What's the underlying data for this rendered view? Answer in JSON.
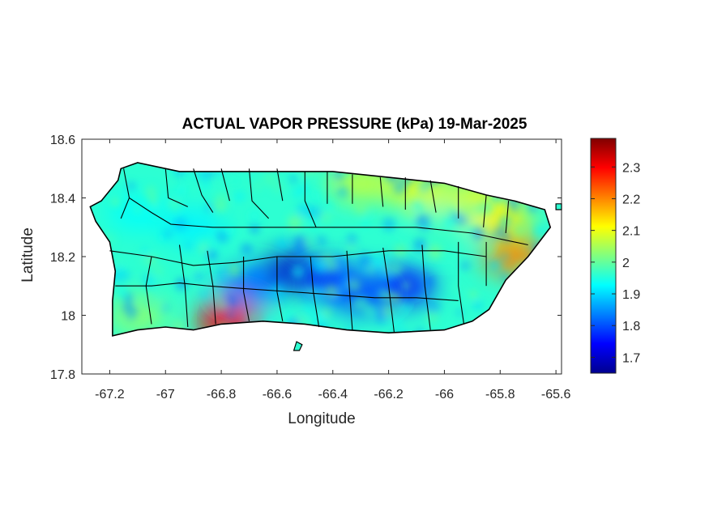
{
  "title": "ACTUAL VAPOR PRESSURE (kPa) 19-Mar-2025",
  "axes": {
    "xlabel": "Longitude",
    "ylabel": "Latitude",
    "xlim": [
      -67.3,
      -65.58
    ],
    "ylim": [
      17.8,
      18.6
    ],
    "xticks": [
      "-67.2",
      "-67",
      "-66.8",
      "-66.6",
      "-66.4",
      "-66.2",
      "-66",
      "-65.8",
      "-65.6"
    ],
    "xtick_values": [
      -67.2,
      -67.0,
      -66.8,
      -66.6,
      -66.4,
      -66.2,
      -66.0,
      -65.8,
      -65.6
    ],
    "yticks": [
      "18.6",
      "18.4",
      "18.2",
      "18",
      "17.8"
    ],
    "ytick_values": [
      18.6,
      18.4,
      18.2,
      18.0,
      17.8
    ]
  },
  "colorbar": {
    "colormap": "jet",
    "range": [
      1.65,
      2.39
    ],
    "ticks": [
      "2.3",
      "2.2",
      "2.1",
      "2",
      "1.9",
      "1.8",
      "1.7"
    ],
    "tick_values": [
      2.3,
      2.2,
      2.1,
      2.0,
      1.9,
      1.8,
      1.7
    ]
  },
  "map": {
    "region": "Puerto Rico",
    "boundary_color": "#000000",
    "outline": [
      [
        -67.27,
        18.37
      ],
      [
        -67.23,
        18.39
      ],
      [
        -67.17,
        18.46
      ],
      [
        -67.16,
        18.5
      ],
      [
        -67.1,
        18.52
      ],
      [
        -66.95,
        18.49
      ],
      [
        -66.8,
        18.49
      ],
      [
        -66.6,
        18.49
      ],
      [
        -66.4,
        18.49
      ],
      [
        -66.2,
        18.47
      ],
      [
        -66.0,
        18.45
      ],
      [
        -65.85,
        18.41
      ],
      [
        -65.75,
        18.39
      ],
      [
        -65.64,
        18.36
      ],
      [
        -65.62,
        18.3
      ],
      [
        -65.66,
        18.25
      ],
      [
        -65.7,
        18.2
      ],
      [
        -65.78,
        18.12
      ],
      [
        -65.84,
        18.02
      ],
      [
        -65.9,
        17.98
      ],
      [
        -66.0,
        17.95
      ],
      [
        -66.2,
        17.94
      ],
      [
        -66.35,
        17.95
      ],
      [
        -66.5,
        17.97
      ],
      [
        -66.65,
        17.98
      ],
      [
        -66.8,
        17.97
      ],
      [
        -66.9,
        17.95
      ],
      [
        -67.0,
        17.96
      ],
      [
        -67.1,
        17.95
      ],
      [
        -67.19,
        17.93
      ],
      [
        -67.19,
        18.05
      ],
      [
        -67.18,
        18.15
      ],
      [
        -67.2,
        18.25
      ],
      [
        -67.25,
        18.32
      ]
    ],
    "islets": [
      [
        [
          -66.54,
          17.88
        ],
        [
          -66.52,
          17.88
        ],
        [
          -66.51,
          17.9
        ],
        [
          -66.53,
          17.91
        ]
      ],
      [
        [
          -65.6,
          18.36
        ],
        [
          -65.58,
          18.36
        ],
        [
          -65.58,
          18.38
        ],
        [
          -65.6,
          18.38
        ]
      ]
    ],
    "municipio_lines": [
      [
        [
          -67.15,
          18.5
        ],
        [
          -67.13,
          18.4
        ],
        [
          -67.16,
          18.33
        ]
      ],
      [
        [
          -67.13,
          18.4
        ],
        [
          -67.05,
          18.35
        ],
        [
          -66.98,
          18.31
        ]
      ],
      [
        [
          -67.0,
          18.5
        ],
        [
          -66.99,
          18.4
        ],
        [
          -66.92,
          18.37
        ]
      ],
      [
        [
          -66.9,
          18.5
        ],
        [
          -66.87,
          18.41
        ],
        [
          -66.83,
          18.35
        ]
      ],
      [
        [
          -66.8,
          18.5
        ],
        [
          -66.77,
          18.39
        ]
      ],
      [
        [
          -66.7,
          18.5
        ],
        [
          -66.69,
          18.39
        ],
        [
          -66.63,
          18.33
        ]
      ],
      [
        [
          -66.6,
          18.5
        ],
        [
          -66.58,
          18.39
        ]
      ],
      [
        [
          -66.5,
          18.49
        ],
        [
          -66.5,
          18.39
        ],
        [
          -66.46,
          18.3
        ]
      ],
      [
        [
          -66.42,
          18.49
        ],
        [
          -66.42,
          18.38
        ]
      ],
      [
        [
          -66.33,
          18.48
        ],
        [
          -66.33,
          18.38
        ]
      ],
      [
        [
          -66.23,
          18.47
        ],
        [
          -66.22,
          18.37
        ]
      ],
      [
        [
          -66.14,
          18.47
        ],
        [
          -66.14,
          18.36
        ]
      ],
      [
        [
          -66.05,
          18.46
        ],
        [
          -66.03,
          18.35
        ]
      ],
      [
        [
          -65.95,
          18.44
        ],
        [
          -65.95,
          18.33
        ]
      ],
      [
        [
          -65.85,
          18.41
        ],
        [
          -65.86,
          18.3
        ]
      ],
      [
        [
          -65.77,
          18.39
        ],
        [
          -65.78,
          18.28
        ]
      ],
      [
        [
          -67.2,
          18.22
        ],
        [
          -67.05,
          18.2
        ],
        [
          -66.9,
          18.17
        ],
        [
          -66.75,
          18.18
        ]
      ],
      [
        [
          -67.18,
          18.1
        ],
        [
          -67.05,
          18.1
        ],
        [
          -66.95,
          18.11
        ],
        [
          -66.85,
          18.1
        ]
      ],
      [
        [
          -67.05,
          18.2
        ],
        [
          -67.07,
          18.1
        ],
        [
          -67.05,
          17.97
        ]
      ],
      [
        [
          -66.95,
          18.24
        ],
        [
          -66.93,
          18.1
        ],
        [
          -66.92,
          17.96
        ]
      ],
      [
        [
          -66.85,
          18.22
        ],
        [
          -66.83,
          18.1
        ],
        [
          -66.82,
          17.97
        ]
      ],
      [
        [
          -66.72,
          18.2
        ],
        [
          -66.72,
          18.08
        ],
        [
          -66.7,
          17.98
        ]
      ],
      [
        [
          -66.6,
          18.2
        ],
        [
          -66.6,
          18.08
        ],
        [
          -66.58,
          17.98
        ]
      ],
      [
        [
          -66.48,
          18.2
        ],
        [
          -66.47,
          18.08
        ],
        [
          -66.45,
          17.96
        ]
      ],
      [
        [
          -66.35,
          18.22
        ],
        [
          -66.34,
          18.08
        ],
        [
          -66.33,
          17.95
        ]
      ],
      [
        [
          -66.22,
          18.23
        ],
        [
          -66.2,
          18.1
        ],
        [
          -66.18,
          17.94
        ]
      ],
      [
        [
          -66.08,
          18.24
        ],
        [
          -66.07,
          18.1
        ],
        [
          -66.05,
          17.95
        ]
      ],
      [
        [
          -65.95,
          18.25
        ],
        [
          -65.95,
          18.1
        ],
        [
          -65.93,
          17.97
        ]
      ],
      [
        [
          -65.85,
          18.25
        ],
        [
          -65.85,
          18.1
        ]
      ],
      [
        [
          -66.98,
          18.31
        ],
        [
          -66.83,
          18.3
        ],
        [
          -66.63,
          18.3
        ],
        [
          -66.46,
          18.3
        ],
        [
          -66.3,
          18.3
        ],
        [
          -66.1,
          18.3
        ],
        [
          -65.9,
          18.28
        ],
        [
          -65.7,
          18.24
        ]
      ],
      [
        [
          -66.75,
          18.18
        ],
        [
          -66.6,
          18.2
        ],
        [
          -66.4,
          18.2
        ],
        [
          -66.2,
          18.22
        ],
        [
          -66.0,
          18.22
        ],
        [
          -65.85,
          18.2
        ]
      ],
      [
        [
          -66.85,
          18.1
        ],
        [
          -66.7,
          18.09
        ],
        [
          -66.55,
          18.08
        ],
        [
          -66.4,
          18.07
        ],
        [
          -66.25,
          18.06
        ],
        [
          -66.1,
          18.06
        ],
        [
          -65.95,
          18.05
        ]
      ]
    ],
    "field_features": [
      {
        "lon": -66.55,
        "lat": 18.15,
        "value": 1.7
      },
      {
        "lon": -66.4,
        "lat": 18.12,
        "value": 1.78
      },
      {
        "lon": -66.15,
        "lat": 18.1,
        "value": 1.75
      },
      {
        "lon": -66.3,
        "lat": 18.07,
        "value": 1.8
      },
      {
        "lon": -66.7,
        "lat": 18.1,
        "value": 1.82
      },
      {
        "lon": -66.9,
        "lat": 18.3,
        "value": 1.92
      },
      {
        "lon": -67.1,
        "lat": 18.35,
        "value": 1.93
      },
      {
        "lon": -66.3,
        "lat": 18.45,
        "value": 2.07
      },
      {
        "lon": -66.1,
        "lat": 18.43,
        "value": 2.1
      },
      {
        "lon": -65.9,
        "lat": 18.4,
        "value": 2.08
      },
      {
        "lon": -65.75,
        "lat": 18.2,
        "value": 2.2
      },
      {
        "lon": -65.8,
        "lat": 18.33,
        "value": 2.12
      },
      {
        "lon": -66.78,
        "lat": 17.98,
        "value": 2.3
      },
      {
        "lon": -67.1,
        "lat": 18.0,
        "value": 2.03
      },
      {
        "lon": -66.0,
        "lat": 18.3,
        "value": 1.97
      }
    ]
  }
}
